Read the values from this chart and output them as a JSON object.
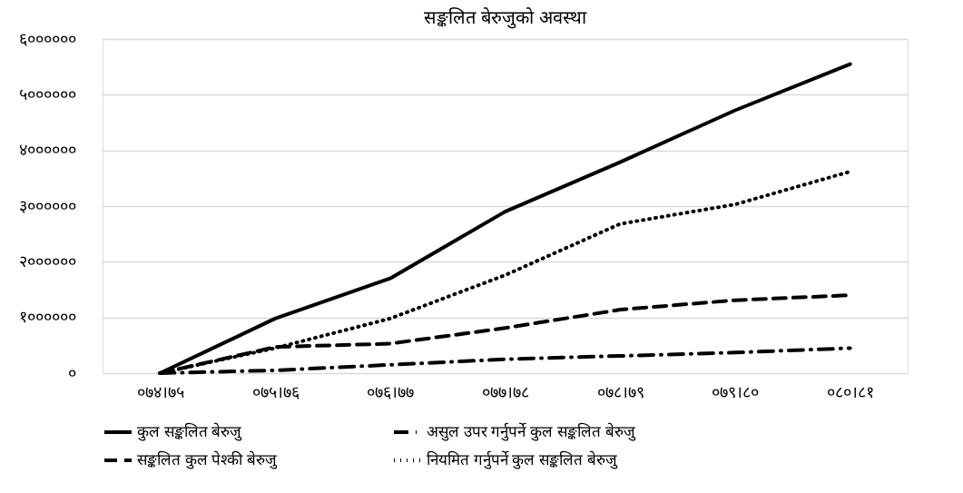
{
  "chart_data": {
    "type": "line",
    "title": "सङ्कलित बेरुजुको अवस्था",
    "categories": [
      "०७४।७५",
      "०७५।७६",
      "०७६।७७",
      "०७७।७८",
      "०७८।७९",
      "०७९।८०",
      "०८०।८१"
    ],
    "series": [
      {
        "name": "कुल सङ्कलित बेरुजु",
        "color": "#000000",
        "line_style": "solid",
        "values": [
          0,
          980000,
          1700000,
          2900000,
          3790000,
          4720000,
          5550000
        ]
      },
      {
        "name": "असुल उपर गर्नुपर्ने कुल सङ्कलित बेरुजु",
        "color": "#000000",
        "line_style": "dashdot",
        "values": [
          0,
          50000,
          150000,
          250000,
          310000,
          370000,
          450000
        ]
      },
      {
        "name": "सङ्कलित कुल पेश्की बेरुजु",
        "color": "#000000",
        "line_style": "dashed",
        "values": [
          0,
          470000,
          530000,
          810000,
          1140000,
          1310000,
          1400000
        ]
      },
      {
        "name": "नियमित गर्नुपर्ने कुल सङ्कलित बेरुजु",
        "color": "#000000",
        "line_style": "dotted",
        "values": [
          0,
          450000,
          980000,
          1760000,
          2680000,
          3030000,
          3620000
        ]
      }
    ],
    "ylim": [
      0,
      6000000
    ],
    "yticks": [
      {
        "value": 0,
        "label": "०"
      },
      {
        "value": 1000000,
        "label": "१००००००"
      },
      {
        "value": 2000000,
        "label": "२००००००"
      },
      {
        "value": 3000000,
        "label": "३००००००"
      },
      {
        "value": 4000000,
        "label": "४००००००"
      },
      {
        "value": 5000000,
        "label": "५००००००"
      },
      {
        "value": 6000000,
        "label": "६००००००"
      }
    ],
    "grid": "y",
    "legend": "bottom",
    "marker": "none"
  }
}
